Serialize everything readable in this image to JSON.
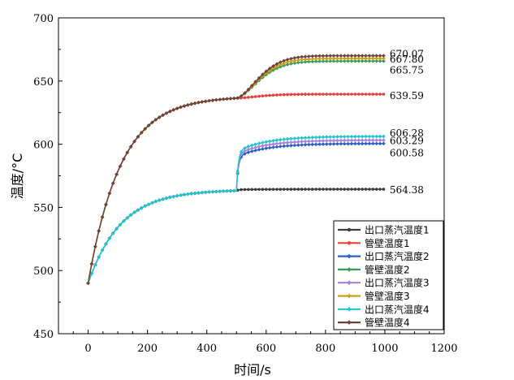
{
  "chart_data": {
    "type": "line",
    "xlabel": "时间/s",
    "ylabel": "温度/°C",
    "xlim": [
      -100,
      1200
    ],
    "ylim": [
      450,
      700
    ],
    "xticks": [
      0,
      200,
      400,
      600,
      800,
      1000,
      1200
    ],
    "yticks": [
      450,
      500,
      550,
      600,
      650,
      700
    ],
    "grid": false,
    "legend_position": "bottom-right",
    "model": {
      "t_switch": 500,
      "x_start": 0,
      "x_end": 1000,
      "tau_rise": 110,
      "tau_after": 100
    },
    "series": [
      {
        "name": "出口蒸汽温度1",
        "color": "#3d3d3d",
        "marker": "circle",
        "start": 490,
        "plateau": 564,
        "final": 564.38,
        "end_label": "564.38"
      },
      {
        "name": "管壁温度1",
        "color": "#e8413c",
        "marker": "circle",
        "start": 490,
        "plateau": 638,
        "final": 639.59,
        "end_label": "639.59"
      },
      {
        "name": "出口蒸汽温度2",
        "color": "#2a5fc4",
        "marker": "diamond",
        "start": 490,
        "plateau": 564,
        "final": 600.58,
        "end_label": "600.58"
      },
      {
        "name": "管壁温度2",
        "color": "#3a9c5b",
        "marker": "diamond",
        "start": 490,
        "plateau": 638,
        "final": 665.75,
        "end_label": "665.75"
      },
      {
        "name": "出口蒸汽温度3",
        "color": "#a77fe0",
        "marker": "diamond",
        "start": 490,
        "plateau": 564,
        "final": 603.29,
        "end_label": "603.29"
      },
      {
        "name": "管壁温度3",
        "color": "#c9a017",
        "marker": "diamond",
        "start": 490,
        "plateau": 638,
        "final": 667.8,
        "end_label": "667.80"
      },
      {
        "name": "出口蒸汽温度4",
        "color": "#1ec6cc",
        "marker": "diamond",
        "start": 490,
        "plateau": 564,
        "final": 606.28,
        "end_label": "606.28"
      },
      {
        "name": "管壁温度4",
        "color": "#70413c",
        "marker": "diamond",
        "start": 490,
        "plateau": 638,
        "final": 670.07,
        "end_label": "670.07"
      }
    ]
  }
}
